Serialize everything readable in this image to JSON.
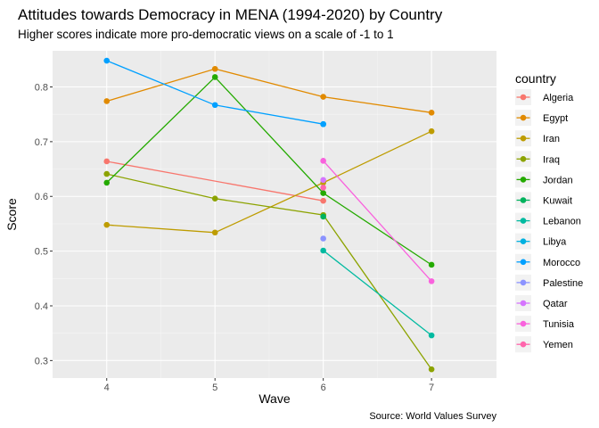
{
  "chart_data": {
    "type": "line",
    "title": "Attitudes towards Democracy in MENA (1994-2020) by Country",
    "subtitle": "Higher scores indicate more pro-democratic views on a scale of -1 to 1",
    "xlabel": "Wave",
    "ylabel": "Score",
    "caption": "Source: World Values Survey",
    "legend_title": "country",
    "legend_position": "right",
    "xlim": [
      3.5,
      7.6
    ],
    "ylim": [
      0.268,
      0.866
    ],
    "x_ticks": [
      4,
      5,
      6,
      7
    ],
    "y_ticks": [
      0.3,
      0.4,
      0.5,
      0.6,
      0.7,
      0.8
    ],
    "x_tick_labels": [
      "4",
      "5",
      "6",
      "7"
    ],
    "y_tick_labels": [
      "0.3",
      "0.4",
      "0.5",
      "0.6",
      "0.7",
      "0.8"
    ],
    "grid": true,
    "series": [
      {
        "name": "Algeria",
        "color": "#F8766D",
        "points": [
          {
            "x": 4,
            "y": 0.664
          },
          {
            "x": 6,
            "y": 0.592
          }
        ]
      },
      {
        "name": "Egypt",
        "color": "#E18A00",
        "points": [
          {
            "x": 4,
            "y": 0.774
          },
          {
            "x": 5,
            "y": 0.833
          },
          {
            "x": 6,
            "y": 0.782
          },
          {
            "x": 7,
            "y": 0.753
          }
        ]
      },
      {
        "name": "Iran",
        "color": "#BE9C00",
        "points": [
          {
            "x": 4,
            "y": 0.548
          },
          {
            "x": 5,
            "y": 0.534
          },
          {
            "x": 6,
            "y": 0.625
          },
          {
            "x": 7,
            "y": 0.719
          }
        ]
      },
      {
        "name": "Iraq",
        "color": "#8CA300",
        "points": [
          {
            "x": 4,
            "y": 0.641
          },
          {
            "x": 5,
            "y": 0.596
          },
          {
            "x": 6,
            "y": 0.566
          },
          {
            "x": 7,
            "y": 0.284
          }
        ]
      },
      {
        "name": "Jordan",
        "color": "#24AA00",
        "points": [
          {
            "x": 4,
            "y": 0.625
          },
          {
            "x": 5,
            "y": 0.818
          },
          {
            "x": 6,
            "y": 0.606
          },
          {
            "x": 7,
            "y": 0.475
          }
        ]
      },
      {
        "name": "Kuwait",
        "color": "#00B25D",
        "points": [
          {
            "x": 6,
            "y": 0.563
          }
        ]
      },
      {
        "name": "Lebanon",
        "color": "#00BAA0",
        "points": [
          {
            "x": 6,
            "y": 0.501
          },
          {
            "x": 7,
            "y": 0.346
          }
        ]
      },
      {
        "name": "Libya",
        "color": "#00B0E0",
        "points": [
          {
            "x": 6,
            "y": 0.732
          }
        ]
      },
      {
        "name": "Morocco",
        "color": "#00A0FF",
        "points": [
          {
            "x": 4,
            "y": 0.848
          },
          {
            "x": 5,
            "y": 0.767
          },
          {
            "x": 6,
            "y": 0.732
          }
        ]
      },
      {
        "name": "Palestine",
        "color": "#8B93FF",
        "points": [
          {
            "x": 6,
            "y": 0.523
          }
        ]
      },
      {
        "name": "Qatar",
        "color": "#D575FE",
        "points": [
          {
            "x": 6,
            "y": 0.63
          }
        ]
      },
      {
        "name": "Tunisia",
        "color": "#F962DD",
        "points": [
          {
            "x": 6,
            "y": 0.665
          },
          {
            "x": 7,
            "y": 0.445
          }
        ]
      },
      {
        "name": "Yemen",
        "color": "#FF65AC",
        "points": [
          {
            "x": 6,
            "y": 0.616
          }
        ]
      }
    ]
  }
}
